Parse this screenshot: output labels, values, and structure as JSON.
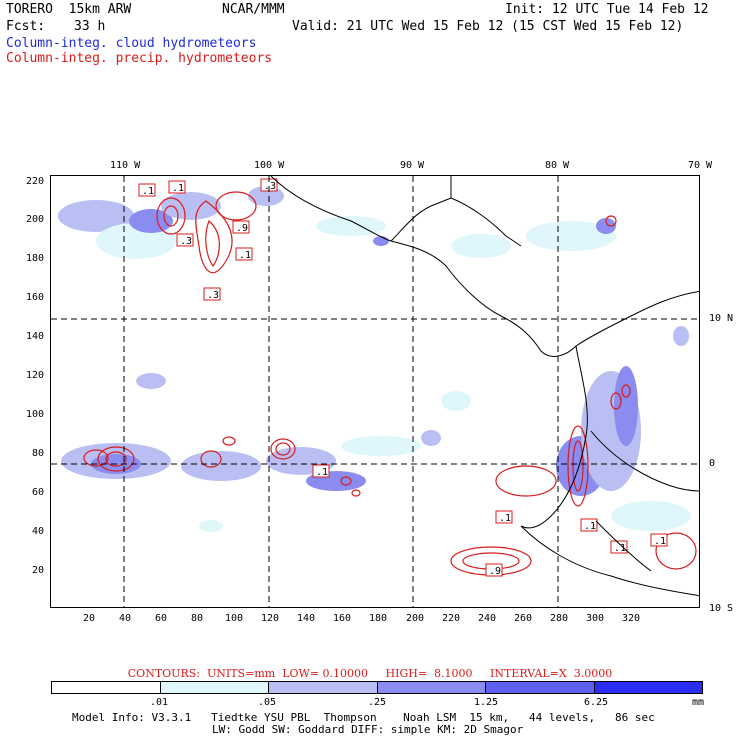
{
  "header": {
    "model_title": "TORERO  15km ARW",
    "center": "NCAR/MMM",
    "init": "Init: 12 UTC Tue 14 Feb 12",
    "fcst_label": "Fcst:",
    "fcst_value": "33 h",
    "valid": "Valid: 21 UTC Wed 15 Feb 12 (15 CST Wed 15 Feb 12)"
  },
  "legend": {
    "cloud": "Column-integ. cloud hydrometeors",
    "precip": "Column-integ. precip. hydrometeors"
  },
  "map": {
    "lon_labels": [
      "110 W",
      "100 W",
      "90 W",
      "80 W",
      "70 W"
    ],
    "lat_labels": [
      "10 N",
      "0",
      "10 S"
    ],
    "x_ticks": [
      "20",
      "40",
      "60",
      "80",
      "100",
      "120",
      "140",
      "160",
      "180",
      "200",
      "220",
      "240",
      "260",
      "280",
      "300",
      "320"
    ],
    "y_ticks": [
      "220",
      "200",
      "180",
      "160",
      "140",
      "120",
      "100",
      "80",
      "60",
      "40",
      "20"
    ],
    "contour_labels": [
      ".1",
      ".1",
      ".3",
      ".3",
      ".9",
      ".1",
      ".3",
      ".1",
      ".1",
      ".1",
      ".1",
      ".9",
      ".1"
    ]
  },
  "contour_info": {
    "contours": "CONTOURS:",
    "units": "UNITS=mm",
    "low": "LOW= 0.10000",
    "high": "HIGH=  8.1000",
    "interval": "INTERVAL=X  3.0000"
  },
  "colorbar": {
    "labels": [
      ".01",
      ".05",
      ".25",
      "1.25",
      "6.25",
      "mm"
    ],
    "colors": [
      "#ffffff",
      "#dff7fb",
      "#b9bff2",
      "#8a8cf0",
      "#5d60f0",
      "#2a2df4"
    ]
  },
  "footer": {
    "line1": "Model Info: V3.3.1   Tiedtke YSU PBL  Thompson    Noah LSM  15 km,   44 levels,   86 sec",
    "line2": "LW: Godd SW: Goddard DIFF: simple KM: 2D Smagor"
  }
}
